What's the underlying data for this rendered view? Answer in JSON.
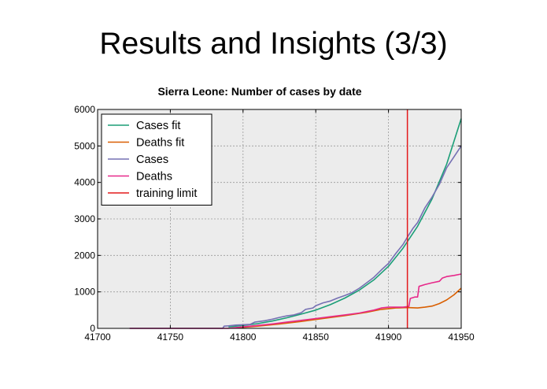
{
  "slide": {
    "title": "Results and Insights (3/3)"
  },
  "chart_data": {
    "type": "line",
    "title": "Sierra Leone: Number of cases by date",
    "xlabel": "",
    "ylabel": "",
    "xlim": [
      41700,
      41950
    ],
    "ylim": [
      0,
      6000
    ],
    "xticks": [
      41700,
      41750,
      41800,
      41850,
      41900,
      41950
    ],
    "yticks": [
      0,
      1000,
      2000,
      3000,
      4000,
      5000,
      6000
    ],
    "grid": true,
    "legend": "top-left",
    "series": [
      {
        "name": "Cases fit",
        "color": "#1b9e77",
        "points": [
          [
            41790,
            40
          ],
          [
            41800,
            80
          ],
          [
            41810,
            130
          ],
          [
            41820,
            200
          ],
          [
            41830,
            290
          ],
          [
            41840,
            390
          ],
          [
            41850,
            500
          ],
          [
            41860,
            650
          ],
          [
            41870,
            830
          ],
          [
            41880,
            1050
          ],
          [
            41890,
            1330
          ],
          [
            41900,
            1700
          ],
          [
            41910,
            2200
          ],
          [
            41920,
            2800
          ],
          [
            41930,
            3550
          ],
          [
            41940,
            4500
          ],
          [
            41950,
            5750
          ]
        ]
      },
      {
        "name": "Deaths fit",
        "color": "#d95f02",
        "points": [
          [
            41795,
            10
          ],
          [
            41810,
            60
          ],
          [
            41825,
            120
          ],
          [
            41840,
            190
          ],
          [
            41855,
            270
          ],
          [
            41870,
            350
          ],
          [
            41885,
            440
          ],
          [
            41895,
            520
          ],
          [
            41905,
            560
          ],
          [
            41913,
            570
          ],
          [
            41920,
            560
          ],
          [
            41925,
            580
          ],
          [
            41930,
            610
          ],
          [
            41935,
            680
          ],
          [
            41940,
            780
          ],
          [
            41945,
            920
          ],
          [
            41950,
            1100
          ]
        ]
      },
      {
        "name": "Cases",
        "color": "#7570b3",
        "points": [
          [
            41722,
            0
          ],
          [
            41786,
            0
          ],
          [
            41787,
            60
          ],
          [
            41790,
            70
          ],
          [
            41795,
            90
          ],
          [
            41800,
            100
          ],
          [
            41805,
            110
          ],
          [
            41808,
            170
          ],
          [
            41815,
            210
          ],
          [
            41820,
            250
          ],
          [
            41825,
            300
          ],
          [
            41830,
            340
          ],
          [
            41835,
            370
          ],
          [
            41840,
            430
          ],
          [
            41843,
            520
          ],
          [
            41848,
            560
          ],
          [
            41850,
            620
          ],
          [
            41855,
            700
          ],
          [
            41860,
            750
          ],
          [
            41865,
            830
          ],
          [
            41870,
            900
          ],
          [
            41875,
            980
          ],
          [
            41880,
            1100
          ],
          [
            41885,
            1250
          ],
          [
            41890,
            1400
          ],
          [
            41895,
            1600
          ],
          [
            41900,
            1780
          ],
          [
            41905,
            2050
          ],
          [
            41910,
            2300
          ],
          [
            41913,
            2500
          ],
          [
            41917,
            2750
          ],
          [
            41920,
            2900
          ],
          [
            41925,
            3300
          ],
          [
            41930,
            3600
          ],
          [
            41935,
            3950
          ],
          [
            41940,
            4400
          ],
          [
            41945,
            4700
          ],
          [
            41950,
            5000
          ]
        ]
      },
      {
        "name": "Deaths",
        "color": "#e7298a",
        "points": [
          [
            41722,
            0
          ],
          [
            41790,
            0
          ],
          [
            41800,
            40
          ],
          [
            41810,
            80
          ],
          [
            41820,
            120
          ],
          [
            41830,
            170
          ],
          [
            41840,
            220
          ],
          [
            41850,
            270
          ],
          [
            41860,
            320
          ],
          [
            41870,
            370
          ],
          [
            41880,
            420
          ],
          [
            41890,
            500
          ],
          [
            41895,
            560
          ],
          [
            41900,
            580
          ],
          [
            41910,
            580
          ],
          [
            41914,
            600
          ],
          [
            41915,
            820
          ],
          [
            41918,
            860
          ],
          [
            41920,
            860
          ],
          [
            41921,
            1150
          ],
          [
            41925,
            1200
          ],
          [
            41930,
            1250
          ],
          [
            41935,
            1290
          ],
          [
            41937,
            1380
          ],
          [
            41940,
            1420
          ],
          [
            41945,
            1450
          ],
          [
            41950,
            1490
          ]
        ]
      },
      {
        "name": "training limit",
        "color": "#e41a1c",
        "vline": 41913
      }
    ]
  }
}
